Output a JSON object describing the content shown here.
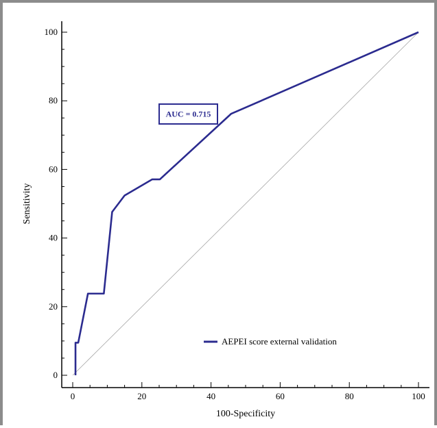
{
  "chart_data": {
    "type": "line",
    "title": "",
    "xlabel": "100-Specificity",
    "ylabel": "Sensitivity",
    "xlim": [
      0,
      100
    ],
    "ylim": [
      0,
      100
    ],
    "x_ticks": [
      0,
      20,
      40,
      60,
      80,
      100
    ],
    "y_ticks": [
      0,
      20,
      40,
      60,
      80,
      100
    ],
    "grid": false,
    "legend_position": "bottom-right",
    "series": [
      {
        "name": "AEPEI score external validation",
        "color": "#2b2b8f",
        "x": [
          0.8,
          0.8,
          1.6,
          4.4,
          9.0,
          11.4,
          15.0,
          23.0,
          25.2,
          45.8,
          100
        ],
        "y": [
          0,
          9.5,
          9.5,
          23.8,
          23.8,
          47.6,
          52.4,
          57.1,
          57.1,
          76.2,
          100
        ]
      },
      {
        "name": "",
        "color": "#a6a6a6",
        "x": [
          0,
          100
        ],
        "y": [
          0,
          100
        ]
      }
    ],
    "annotations": [
      {
        "text": "AUC = 0.715",
        "color": "#2b2b8f"
      }
    ]
  }
}
